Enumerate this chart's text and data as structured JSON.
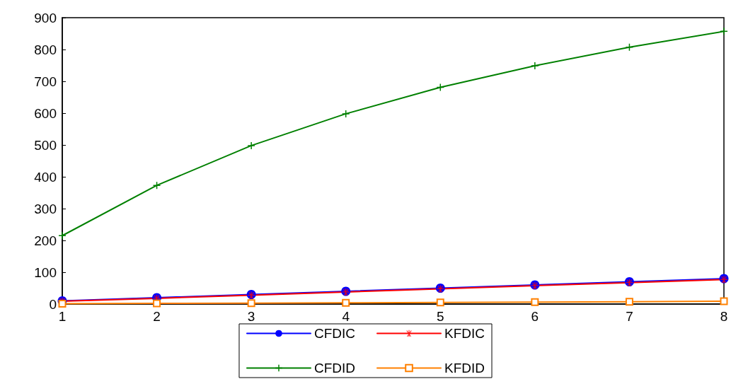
{
  "chart_data": {
    "type": "line",
    "x": [
      1,
      2,
      3,
      4,
      5,
      6,
      7,
      8
    ],
    "series": [
      {
        "name": "CFDIC",
        "color": "#0000ff",
        "marker": "circle",
        "values": [
          10,
          20,
          30,
          40,
          50,
          60,
          70,
          80
        ]
      },
      {
        "name": "KFDIC",
        "color": "#ff0000",
        "marker": "star",
        "values": [
          9,
          18,
          28,
          38,
          48,
          58,
          67,
          77
        ]
      },
      {
        "name": "CFDID",
        "color": "#008000",
        "marker": "cross",
        "values": [
          215,
          373,
          498,
          598,
          681,
          749,
          807,
          857
        ]
      },
      {
        "name": "KFDID",
        "color": "#ff8000",
        "marker": "square",
        "values": [
          1,
          2,
          3,
          4,
          5,
          6,
          7,
          9
        ]
      }
    ],
    "xlim": [
      1,
      8
    ],
    "xticks": [
      1,
      2,
      3,
      4,
      5,
      6,
      7,
      8
    ],
    "ylim": [
      0,
      900
    ],
    "yticks": [
      0,
      100,
      200,
      300,
      400,
      500,
      600,
      700,
      800,
      900
    ],
    "grid": false,
    "legend": "bottom",
    "line_style": "solid"
  }
}
